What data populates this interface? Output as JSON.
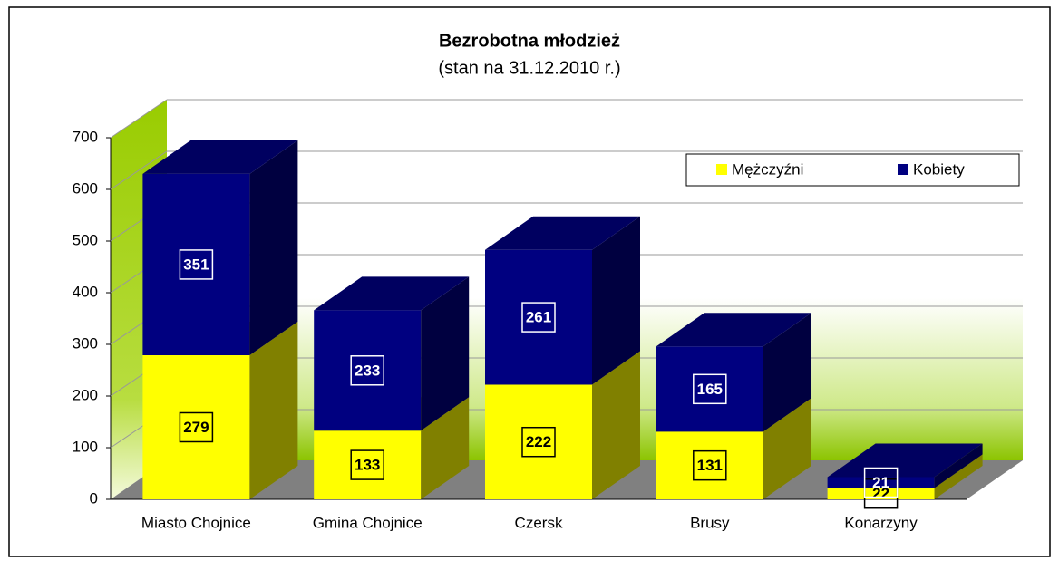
{
  "chart_data": {
    "type": "bar3d_stacked",
    "title": "Bezrobotna młodzież",
    "subtitle": "(stan na 31.12.2010 r.)",
    "categories": [
      "Miasto Chojnice",
      "Gmina Chojnice",
      "Czersk",
      "Brusy",
      "Konarzyny"
    ],
    "series": [
      {
        "name": "Mężczyźni",
        "color": "#ffff00",
        "values": [
          279,
          133,
          222,
          131,
          22
        ]
      },
      {
        "name": "Kobiety",
        "color": "#000080",
        "values": [
          351,
          233,
          261,
          165,
          21
        ]
      }
    ],
    "ylim": [
      0,
      700
    ],
    "yticks": [
      0,
      100,
      200,
      300,
      400,
      500,
      600,
      700
    ],
    "grid": true,
    "legend": "top-right"
  }
}
